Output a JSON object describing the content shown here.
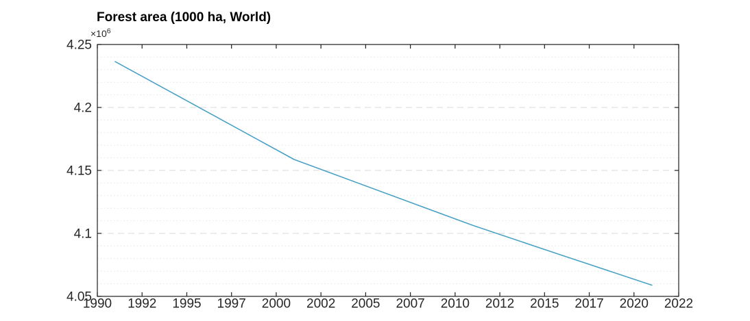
{
  "chart_data": {
    "type": "line",
    "title": "Forest area (1000 ha, World)",
    "unit": "1000 ha",
    "xlabel": "",
    "ylabel": "",
    "y_axis_exponent": {
      "base": "×10",
      "power": "6"
    },
    "xlim": [
      1990,
      2022.5
    ],
    "ylim": [
      4050000,
      4250000
    ],
    "x_ticks": {
      "positions": [
        1990,
        1992.5,
        1995,
        1997.5,
        2000,
        2002.5,
        2005,
        2007.5,
        2010,
        2012.5,
        2015,
        2017.5,
        2020,
        2022.5
      ],
      "labels": [
        "1990",
        "1992",
        "1995",
        "1997",
        "2000",
        "2002",
        "2005",
        "2007",
        "2010",
        "2012",
        "2015",
        "2017",
        "2020",
        "2022"
      ]
    },
    "y_ticks": {
      "positions": [
        4050000,
        4100000,
        4150000,
        4200000,
        4250000
      ],
      "labels": [
        "4.05",
        "4.1",
        "4.15",
        "4.2",
        "4.25"
      ]
    },
    "y_minor_step": 10000,
    "grid": {
      "y_major": "dashed",
      "y_minor": "dotted",
      "x_grid": false,
      "box": true
    },
    "legend": {
      "visible": false
    },
    "series": [
      {
        "name": "World forest area",
        "color": "#4aa1c6",
        "x": [
          1991,
          2001,
          2011,
          2016,
          2021
        ],
        "y": [
          4236400,
          4158700,
          4106300,
          4082500,
          4058900
        ]
      }
    ],
    "colors": {
      "axis": "#262626",
      "tick_label": "#262626",
      "title": "#000000",
      "grid_major": "#d9d9d9",
      "grid_minor": "#e4e4e4",
      "background": "#ffffff"
    }
  }
}
